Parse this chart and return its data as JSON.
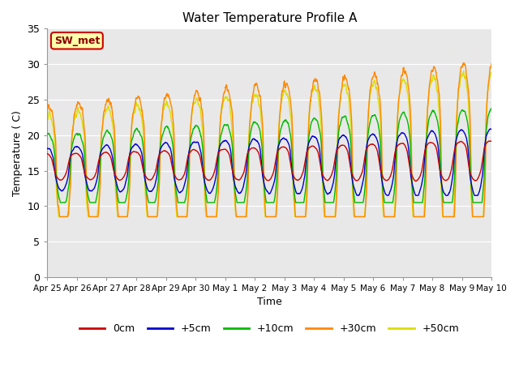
{
  "title": "Water Temperature Profile A",
  "xlabel": "Time",
  "ylabel": "Temperature (C)",
  "ylim": [
    0,
    35
  ],
  "yticks": [
    0,
    5,
    10,
    15,
    20,
    25,
    30,
    35
  ],
  "x_labels": [
    "Apr 25",
    "Apr 26",
    "Apr 27",
    "Apr 28",
    "Apr 29",
    "Apr 30",
    "May 1",
    "May 2",
    "May 3",
    "May 4",
    "May 5",
    "May 6",
    "May 7",
    "May 8",
    "May 9",
    "May 10"
  ],
  "legend_labels": [
    "0cm",
    "+5cm",
    "+10cm",
    "+30cm",
    "+50cm"
  ],
  "legend_colors": [
    "#cc0000",
    "#0000cc",
    "#00bb00",
    "#ff8800",
    "#dddd00"
  ],
  "bg_color": "#e8e8e8",
  "annotation_text": "SW_met",
  "annotation_bg": "#ffffaa",
  "annotation_border": "#cc0000"
}
